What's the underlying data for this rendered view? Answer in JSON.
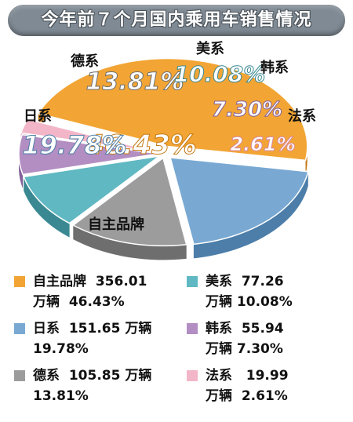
{
  "title": "今年前７个月国内乘用车销售情况",
  "chart_data": {
    "type": "pie",
    "title": "今年前７个月国内乘用车销售情况",
    "unit": "万辆",
    "slices": [
      {
        "name": "自主品牌",
        "value": 356.01,
        "percent": 46.43,
        "percent_label": "46.43%",
        "value_label": "356.01",
        "color": "#f2a534",
        "side": "#c57a16"
      },
      {
        "name": "日系",
        "value": 151.65,
        "percent": 19.78,
        "percent_label": "19.78%",
        "value_label": "151.65",
        "color": "#79a9d3",
        "side": "#4c7ea9"
      },
      {
        "name": "德系",
        "value": 105.85,
        "percent": 13.81,
        "percent_label": "13.81%",
        "value_label": "105.85",
        "color": "#9c9c9c",
        "side": "#6e6e6e"
      },
      {
        "name": "美系",
        "value": 77.26,
        "percent": 10.08,
        "percent_label": "10.08%",
        "value_label": "77.26",
        "color": "#5fb8c2",
        "side": "#3a8992"
      },
      {
        "name": "韩系",
        "value": 55.94,
        "percent": 7.3,
        "percent_label": "7.30%",
        "value_label": "55.94",
        "color": "#b38ec2",
        "side": "#83609a"
      },
      {
        "name": "法系",
        "value": 19.99,
        "percent": 2.61,
        "percent_label": "2.61%",
        "value_label": "19.99",
        "color": "#f2b6c8",
        "side": "#d98aa3"
      }
    ]
  }
}
